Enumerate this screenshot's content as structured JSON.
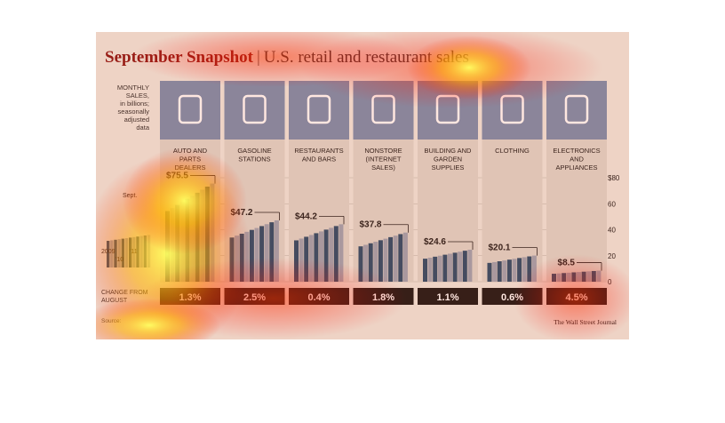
{
  "title": "September Snapshot",
  "separator": "|",
  "subtitle": "U.S. retail and restaurant sales",
  "y_axis_label": [
    "MONTHLY",
    "SALES,",
    "in billions;",
    "seasonally",
    "adjusted",
    "data"
  ],
  "change_label": [
    "CHANGE FROM",
    "AUGUST"
  ],
  "source": "Source:",
  "credit": "The Wall Street Journal",
  "total_series": {
    "marker_label": "Sept.",
    "year_labels": [
      "2009",
      "'11",
      "'10"
    ]
  },
  "chart_data": {
    "type": "bar",
    "title": "September Snapshot | U.S. retail and restaurant sales",
    "ylabel": "MONTHLY SALES, in billions; seasonally adjusted data",
    "ylim": [
      0,
      80
    ],
    "yticks": [
      "$80",
      "60",
      "40",
      "20",
      "0"
    ],
    "grid": true,
    "categories": [
      {
        "label": [
          "AUTO AND",
          "PARTS",
          "DEALERS"
        ],
        "icon": "car-icon",
        "sept_value": 75.5,
        "sept_label": "$75.5",
        "change": "1.3%"
      },
      {
        "label": [
          "GASOLINE",
          "STATIONS"
        ],
        "icon": "gas-pump-icon",
        "sept_value": 47.2,
        "sept_label": "$47.2",
        "change": "2.5%"
      },
      {
        "label": [
          "RESTAURANTS",
          "AND BARS"
        ],
        "icon": "burger-icon",
        "sept_value": 44.2,
        "sept_label": "$44.2",
        "change": "0.4%"
      },
      {
        "label": [
          "NONSTORE",
          "(INTERNET",
          "SALES)"
        ],
        "icon": "computer-icon",
        "sept_value": 37.8,
        "sept_label": "$37.8",
        "change": "1.8%"
      },
      {
        "label": [
          "BUILDING AND",
          "GARDEN",
          "SUPPLIES"
        ],
        "icon": "trowel-icon",
        "sept_value": 24.6,
        "sept_label": "$24.6",
        "change": "1.1%"
      },
      {
        "label": [
          "CLOTHING"
        ],
        "icon": "shirt-icon",
        "sept_value": 20.1,
        "sept_label": "$20.1",
        "change": "0.6%"
      },
      {
        "label": [
          "ELECTRONICS",
          "AND",
          "APPLIANCES"
        ],
        "icon": "phone-icon",
        "sept_value": 8.5,
        "sept_label": "$8.5",
        "change": "4.5%"
      }
    ],
    "colors": {
      "bar_dark": "#2c4f6e",
      "bar_light": "#9ea5b4",
      "icon_box": "#7c90b0",
      "change_box": "#1c1c1c",
      "title": "#8a1a1a"
    }
  }
}
